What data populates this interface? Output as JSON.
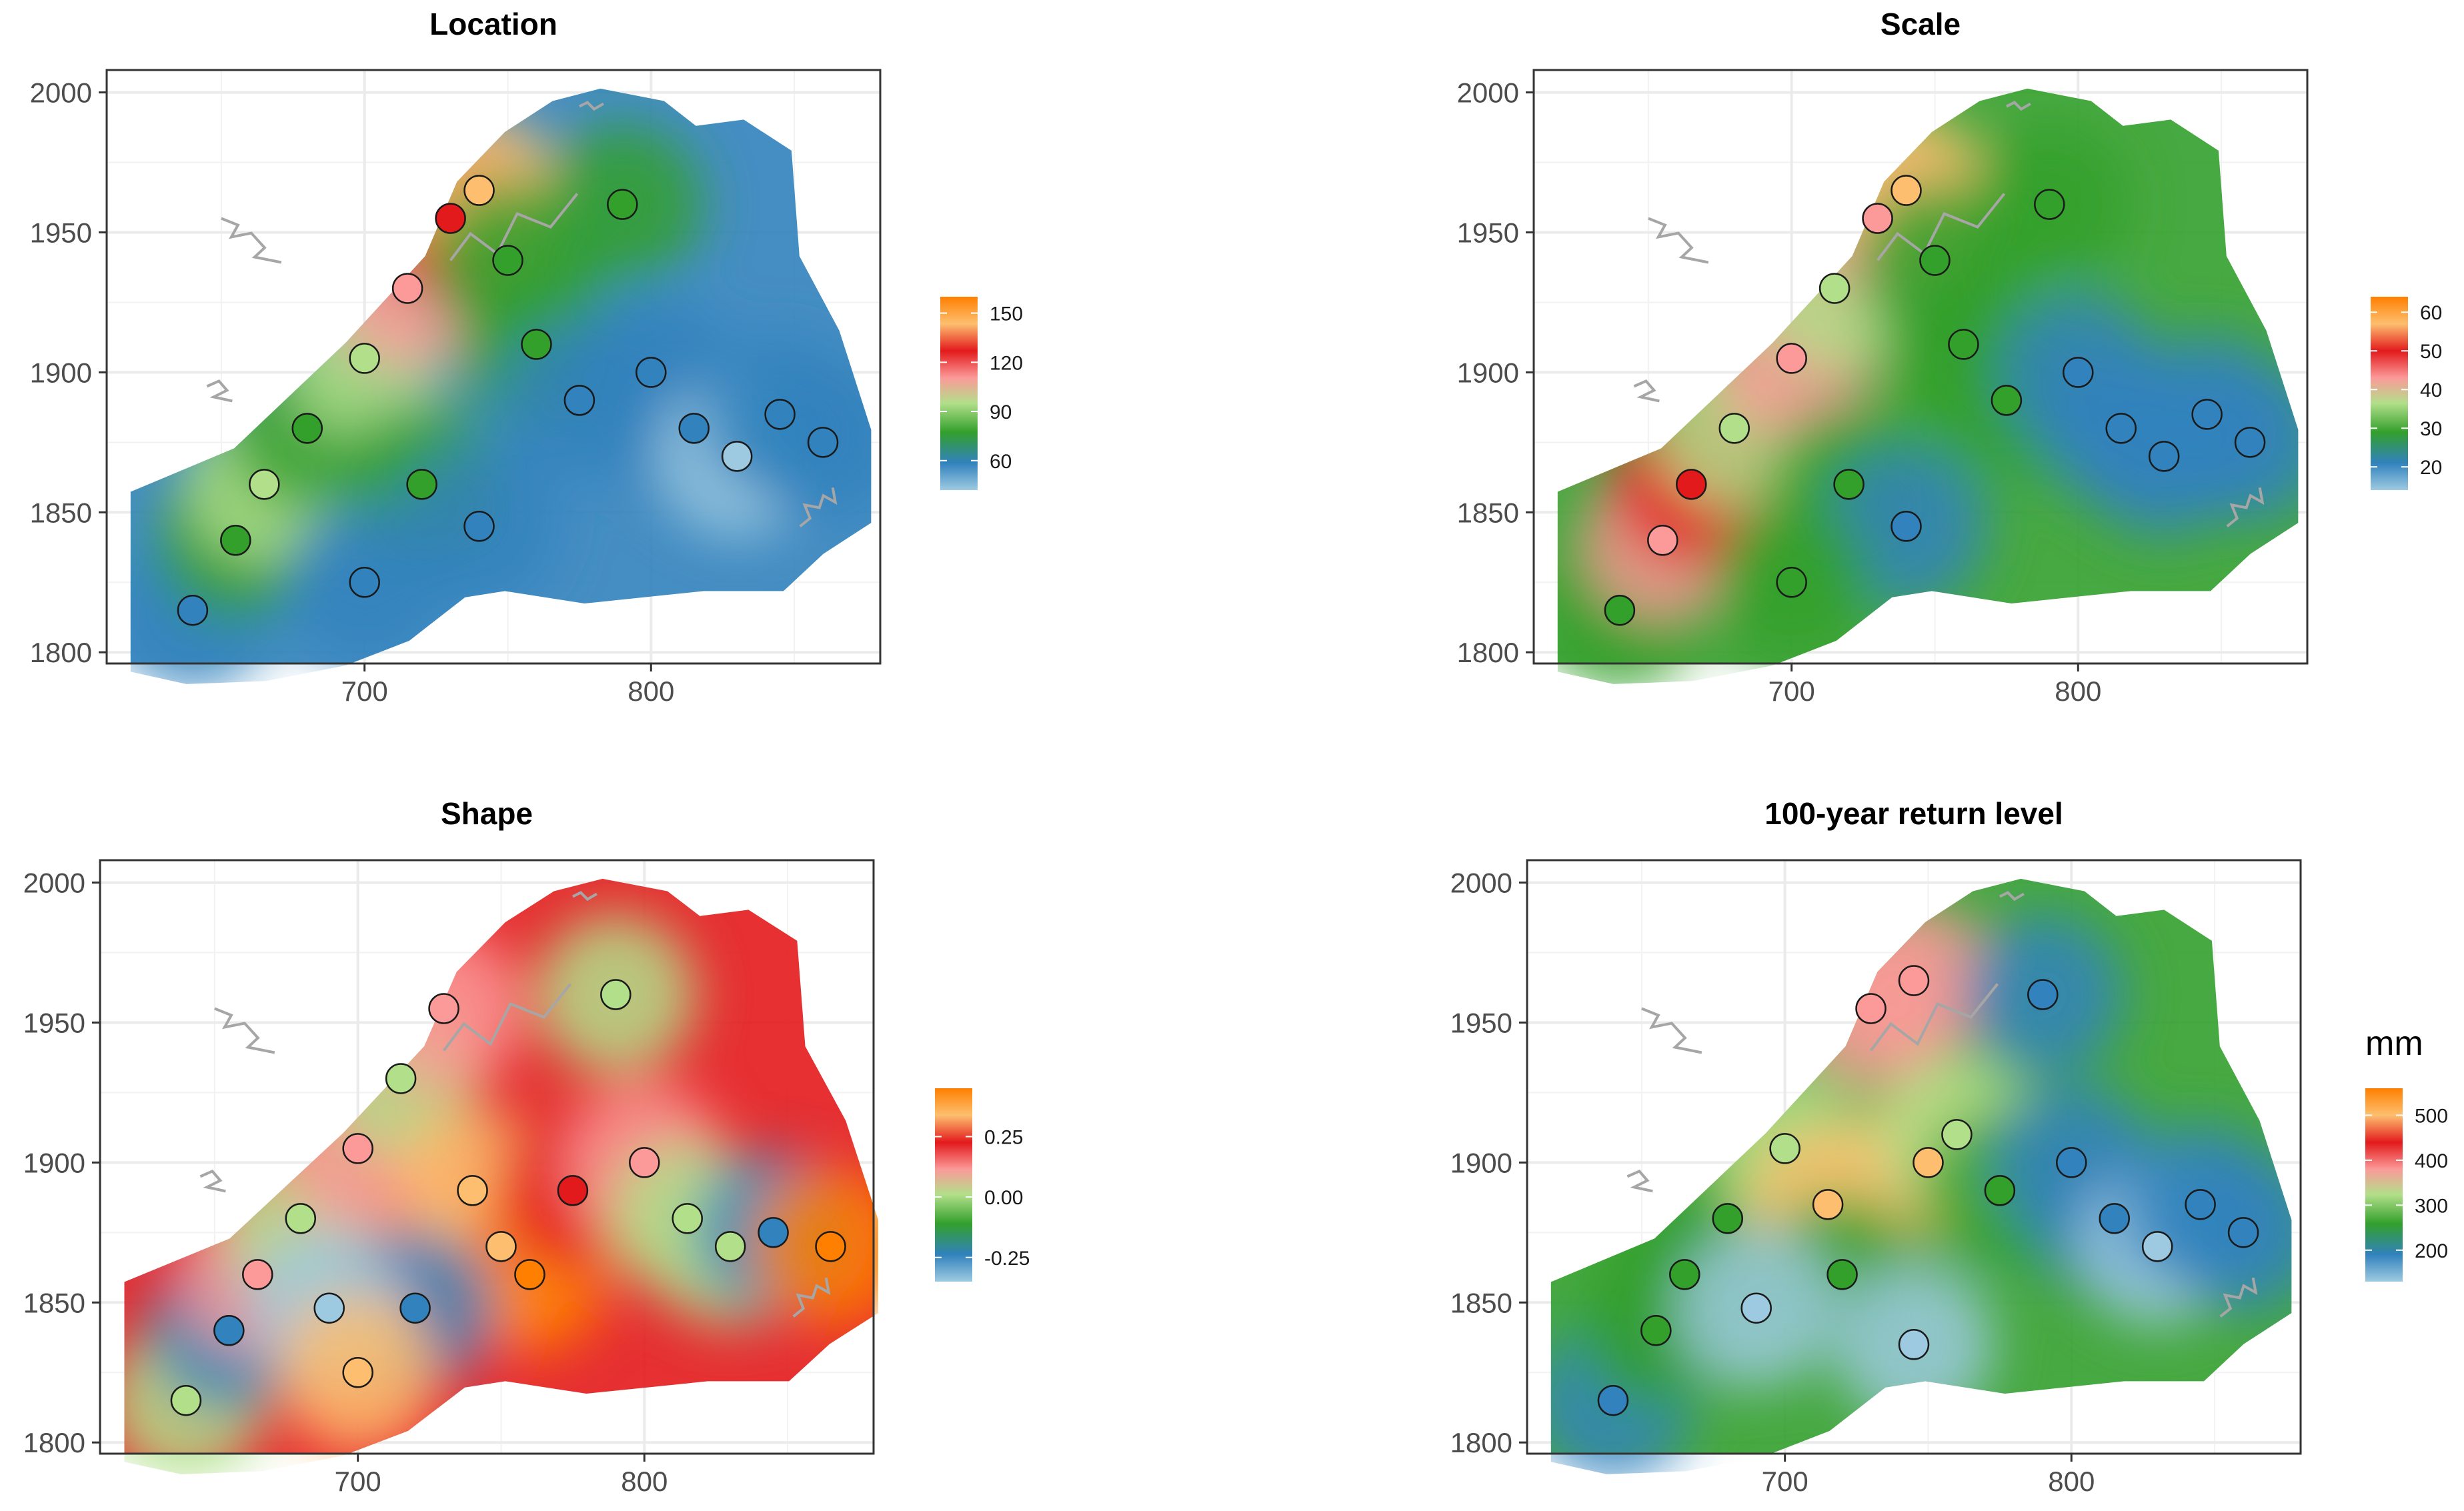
{
  "chart_data": [
    {
      "type": "heatmap",
      "title": "Location",
      "xlabel": "",
      "ylabel": "",
      "x_ticks": [
        700,
        800
      ],
      "y_ticks": [
        1800,
        1850,
        1900,
        1950,
        2000
      ],
      "xlim": [
        610,
        880
      ],
      "ylim": [
        1796,
        2008
      ],
      "grid": true,
      "legend": {
        "title": "",
        "position": "right",
        "ticks": [
          150,
          120,
          90,
          60
        ],
        "range": [
          42,
          160
        ]
      },
      "colors": [
        "#9ecae1",
        "#3182bd",
        "#33a02c",
        "#b2df8a",
        "#fb9a99",
        "#e31a1c",
        "#fdbf6f",
        "#ff7f00"
      ],
      "spatial_pattern": "high in north-west ridge (up to ~150), moderate band through centre, low (~50) in east and south-east",
      "stations": [
        {
          "x": 640,
          "y": 1815,
          "v": 60
        },
        {
          "x": 655,
          "y": 1840,
          "v": 75
        },
        {
          "x": 665,
          "y": 1860,
          "v": 100
        },
        {
          "x": 680,
          "y": 1880,
          "v": 85
        },
        {
          "x": 700,
          "y": 1905,
          "v": 95
        },
        {
          "x": 715,
          "y": 1930,
          "v": 110
        },
        {
          "x": 730,
          "y": 1955,
          "v": 135
        },
        {
          "x": 740,
          "y": 1965,
          "v": 150
        },
        {
          "x": 750,
          "y": 1940,
          "v": 85
        },
        {
          "x": 760,
          "y": 1910,
          "v": 70
        },
        {
          "x": 775,
          "y": 1890,
          "v": 65
        },
        {
          "x": 790,
          "y": 1960,
          "v": 70
        },
        {
          "x": 800,
          "y": 1900,
          "v": 55
        },
        {
          "x": 815,
          "y": 1880,
          "v": 52
        },
        {
          "x": 830,
          "y": 1870,
          "v": 50
        },
        {
          "x": 845,
          "y": 1885,
          "v": 55
        },
        {
          "x": 860,
          "y": 1875,
          "v": 52
        },
        {
          "x": 720,
          "y": 1860,
          "v": 70
        },
        {
          "x": 740,
          "y": 1845,
          "v": 60
        },
        {
          "x": 700,
          "y": 1825,
          "v": 62
        }
      ]
    },
    {
      "type": "heatmap",
      "title": "Scale",
      "xlabel": "",
      "ylabel": "",
      "x_ticks": [
        700,
        800
      ],
      "y_ticks": [
        1800,
        1850,
        1900,
        1950,
        2000
      ],
      "xlim": [
        610,
        880
      ],
      "ylim": [
        1796,
        2008
      ],
      "grid": true,
      "legend": {
        "title": "",
        "position": "right",
        "ticks": [
          60,
          50,
          40,
          30,
          20
        ],
        "range": [
          14,
          64
        ]
      },
      "colors": [
        "#9ecae1",
        "#3182bd",
        "#33a02c",
        "#b2df8a",
        "#fb9a99",
        "#e31a1c",
        "#fdbf6f",
        "#ff7f00"
      ],
      "spatial_pattern": "high (40-60) along north-west edge, moderate (~30) in centre, low (~18) in east",
      "stations": [
        {
          "x": 640,
          "y": 1815,
          "v": 30
        },
        {
          "x": 655,
          "y": 1840,
          "v": 42
        },
        {
          "x": 665,
          "y": 1860,
          "v": 50
        },
        {
          "x": 680,
          "y": 1880,
          "v": 38
        },
        {
          "x": 700,
          "y": 1905,
          "v": 40
        },
        {
          "x": 715,
          "y": 1930,
          "v": 36
        },
        {
          "x": 730,
          "y": 1955,
          "v": 45
        },
        {
          "x": 740,
          "y": 1965,
          "v": 60
        },
        {
          "x": 750,
          "y": 1940,
          "v": 30
        },
        {
          "x": 760,
          "y": 1910,
          "v": 28
        },
        {
          "x": 775,
          "y": 1890,
          "v": 25
        },
        {
          "x": 790,
          "y": 1960,
          "v": 26
        },
        {
          "x": 800,
          "y": 1900,
          "v": 20
        },
        {
          "x": 815,
          "y": 1880,
          "v": 18
        },
        {
          "x": 830,
          "y": 1870,
          "v": 18
        },
        {
          "x": 845,
          "y": 1885,
          "v": 20
        },
        {
          "x": 860,
          "y": 1875,
          "v": 19
        },
        {
          "x": 720,
          "y": 1860,
          "v": 30
        },
        {
          "x": 740,
          "y": 1845,
          "v": 22
        },
        {
          "x": 700,
          "y": 1825,
          "v": 28
        }
      ]
    },
    {
      "type": "heatmap",
      "title": "Shape",
      "xlabel": "",
      "ylabel": "",
      "x_ticks": [
        700,
        800
      ],
      "y_ticks": [
        1800,
        1850,
        1900,
        1950,
        2000
      ],
      "xlim": [
        610,
        880
      ],
      "ylim": [
        1796,
        2008
      ],
      "grid": true,
      "legend": {
        "title": "",
        "position": "right",
        "ticks": [
          "0.25",
          "0.00",
          "-0.25"
        ],
        "range": [
          -0.35,
          0.45
        ]
      },
      "colors": [
        "#9ecae1",
        "#3182bd",
        "#33a02c",
        "#b2df8a",
        "#fb9a99",
        "#e31a1c",
        "#fdbf6f",
        "#ff7f00"
      ],
      "spatial_pattern": "positive (0.2-0.4) along south-west diagonal band and centre, near zero to slightly negative on edges",
      "stations": [
        {
          "x": 640,
          "y": 1815,
          "v": 0.0
        },
        {
          "x": 655,
          "y": 1840,
          "v": -0.2
        },
        {
          "x": 665,
          "y": 1860,
          "v": 0.15
        },
        {
          "x": 680,
          "y": 1880,
          "v": 0.05
        },
        {
          "x": 700,
          "y": 1905,
          "v": 0.1
        },
        {
          "x": 715,
          "y": 1930,
          "v": 0.05
        },
        {
          "x": 730,
          "y": 1955,
          "v": 0.12
        },
        {
          "x": 740,
          "y": 1890,
          "v": 0.35
        },
        {
          "x": 750,
          "y": 1870,
          "v": 0.3
        },
        {
          "x": 760,
          "y": 1860,
          "v": 0.4
        },
        {
          "x": 775,
          "y": 1890,
          "v": 0.2
        },
        {
          "x": 790,
          "y": 1960,
          "v": 0.0
        },
        {
          "x": 800,
          "y": 1900,
          "v": 0.15
        },
        {
          "x": 815,
          "y": 1880,
          "v": 0.02
        },
        {
          "x": 830,
          "y": 1870,
          "v": 0.0
        },
        {
          "x": 845,
          "y": 1875,
          "v": -0.2
        },
        {
          "x": 865,
          "y": 1870,
          "v": 0.4
        },
        {
          "x": 720,
          "y": 1848,
          "v": -0.22
        },
        {
          "x": 690,
          "y": 1848,
          "v": -0.3
        },
        {
          "x": 700,
          "y": 1825,
          "v": 0.3
        }
      ]
    },
    {
      "type": "heatmap",
      "title": "100-year return level",
      "xlabel": "",
      "ylabel": "",
      "x_ticks": [
        700,
        800
      ],
      "y_ticks": [
        1800,
        1850,
        1900,
        1950,
        2000
      ],
      "xlim": [
        610,
        880
      ],
      "ylim": [
        1796,
        2008
      ],
      "grid": true,
      "legend": {
        "title": "mm",
        "position": "right",
        "ticks": [
          500,
          400,
          300,
          200
        ],
        "range": [
          130,
          560
        ]
      },
      "colors": [
        "#9ecae1",
        "#3182bd",
        "#33a02c",
        "#b2df8a",
        "#fb9a99",
        "#e31a1c",
        "#fdbf6f",
        "#ff7f00"
      ],
      "spatial_pattern": "highest (400-500) in north-central ridge around x 720-760, moderate (~280) in west, low (~170) in east",
      "stations": [
        {
          "x": 640,
          "y": 1815,
          "v": 200
        },
        {
          "x": 655,
          "y": 1840,
          "v": 250
        },
        {
          "x": 665,
          "y": 1860,
          "v": 270
        },
        {
          "x": 680,
          "y": 1880,
          "v": 280
        },
        {
          "x": 700,
          "y": 1905,
          "v": 310
        },
        {
          "x": 715,
          "y": 1885,
          "v": 480
        },
        {
          "x": 730,
          "y": 1955,
          "v": 380
        },
        {
          "x": 745,
          "y": 1965,
          "v": 360
        },
        {
          "x": 750,
          "y": 1900,
          "v": 500
        },
        {
          "x": 760,
          "y": 1910,
          "v": 300
        },
        {
          "x": 775,
          "y": 1890,
          "v": 260
        },
        {
          "x": 790,
          "y": 1960,
          "v": 200
        },
        {
          "x": 800,
          "y": 1900,
          "v": 170
        },
        {
          "x": 815,
          "y": 1880,
          "v": 165
        },
        {
          "x": 830,
          "y": 1870,
          "v": 160
        },
        {
          "x": 845,
          "y": 1885,
          "v": 165
        },
        {
          "x": 860,
          "y": 1875,
          "v": 170
        },
        {
          "x": 720,
          "y": 1860,
          "v": 280
        },
        {
          "x": 745,
          "y": 1835,
          "v": 160
        },
        {
          "x": 690,
          "y": 1848,
          "v": 160
        }
      ]
    }
  ]
}
